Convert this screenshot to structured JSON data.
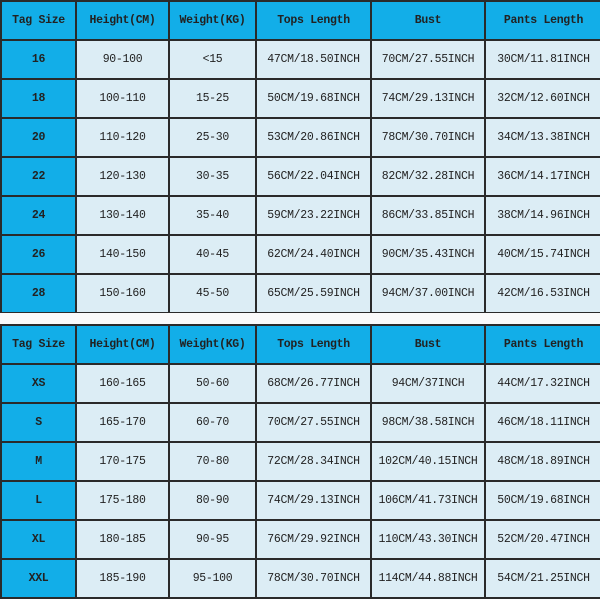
{
  "colors": {
    "header_bg": "#12aee8",
    "cell_bg": "#dcedf5",
    "border": "#2a2a2a"
  },
  "headers": [
    "Tag Size",
    "Height(CM)",
    "Weight(KG)",
    "Tops Length",
    "Bust",
    "Pants Length"
  ],
  "kids_table": [
    [
      "16",
      "90-100",
      "<15",
      "47CM/18.50INCH",
      "70CM/27.55INCH",
      "30CM/11.81INCH"
    ],
    [
      "18",
      "100-110",
      "15-25",
      "50CM/19.68INCH",
      "74CM/29.13INCH",
      "32CM/12.60INCH"
    ],
    [
      "20",
      "110-120",
      "25-30",
      "53CM/20.86INCH",
      "78CM/30.70INCH",
      "34CM/13.38INCH"
    ],
    [
      "22",
      "120-130",
      "30-35",
      "56CM/22.04INCH",
      "82CM/32.28INCH",
      "36CM/14.17INCH"
    ],
    [
      "24",
      "130-140",
      "35-40",
      "59CM/23.22INCH",
      "86CM/33.85INCH",
      "38CM/14.96INCH"
    ],
    [
      "26",
      "140-150",
      "40-45",
      "62CM/24.40INCH",
      "90CM/35.43INCH",
      "40CM/15.74INCH"
    ],
    [
      "28",
      "150-160",
      "45-50",
      "65CM/25.59INCH",
      "94CM/37.00INCH",
      "42CM/16.53INCH"
    ]
  ],
  "adult_table": [
    [
      "XS",
      "160-165",
      "50-60",
      "68CM/26.77INCH",
      "94CM/37INCH",
      "44CM/17.32INCH"
    ],
    [
      "S",
      "165-170",
      "60-70",
      "70CM/27.55INCH",
      "98CM/38.58INCH",
      "46CM/18.11INCH"
    ],
    [
      "M",
      "170-175",
      "70-80",
      "72CM/28.34INCH",
      "102CM/40.15INCH",
      "48CM/18.89INCH"
    ],
    [
      "L",
      "175-180",
      "80-90",
      "74CM/29.13INCH",
      "106CM/41.73INCH",
      "50CM/19.68INCH"
    ],
    [
      "XL",
      "180-185",
      "90-95",
      "76CM/29.92INCH",
      "110CM/43.30INCH",
      "52CM/20.47INCH"
    ],
    [
      "XXL",
      "185-190",
      "95-100",
      "78CM/30.70INCH",
      "114CM/44.88INCH",
      "54CM/21.25INCH"
    ]
  ]
}
